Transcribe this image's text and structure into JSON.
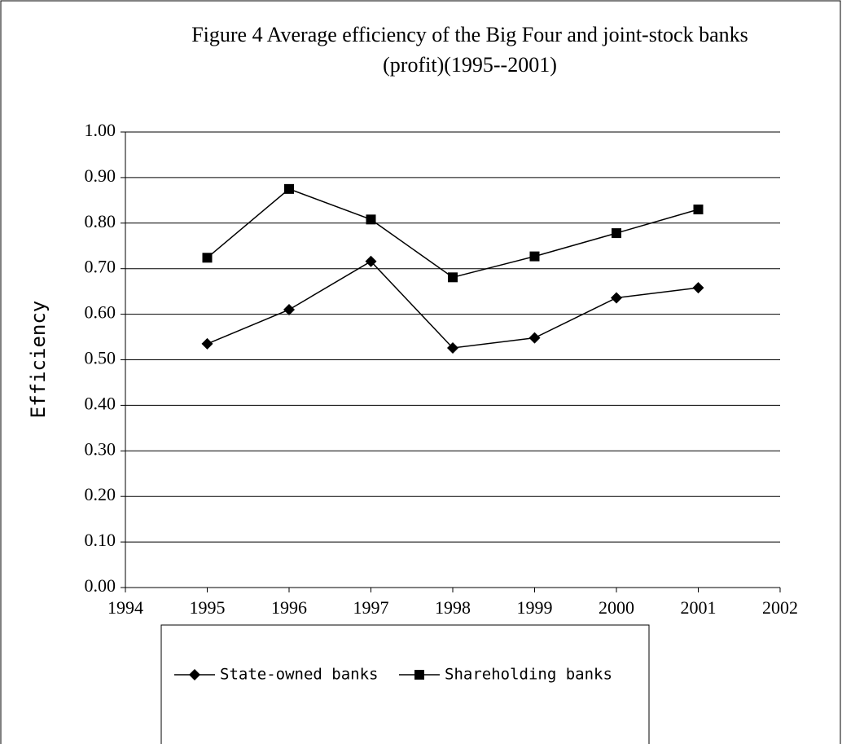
{
  "chart_data": {
    "type": "line",
    "title": [
      "Figure 4  Average efficiency of the Big Four and joint-stock banks",
      "(profit)(1995--2001)"
    ],
    "y_label": "Efficiency",
    "x": [
      1995,
      1996,
      1997,
      1998,
      1999,
      2000,
      2001
    ],
    "series": [
      {
        "name": "State-owned banks",
        "color": "#000000",
        "marker": "diamond",
        "values": [
          0.535,
          0.61,
          0.716,
          0.526,
          0.548,
          0.636,
          0.658
        ]
      },
      {
        "name": "Shareholding banks",
        "color": "#000000",
        "marker": "square",
        "values": [
          0.724,
          0.875,
          0.808,
          0.681,
          0.727,
          0.778,
          0.83
        ]
      }
    ],
    "xlim": [
      1994,
      2002
    ],
    "xticks": [
      1994,
      1995,
      1996,
      1997,
      1998,
      1999,
      2000,
      2001,
      2002
    ],
    "ylim": [
      0,
      1
    ],
    "yticks": [
      {
        "value": 0,
        "label": "0.00"
      },
      {
        "value": 0.1,
        "label": "0.10"
      },
      {
        "value": 0.2,
        "label": "0.20"
      },
      {
        "value": 0.3,
        "label": "0.30"
      },
      {
        "value": 0.4,
        "label": "0.40"
      },
      {
        "value": 0.5,
        "label": "0.50"
      },
      {
        "value": 0.6,
        "label": "0.60"
      },
      {
        "value": 0.7,
        "label": "0.70"
      },
      {
        "value": 0.8,
        "label": "0.80"
      },
      {
        "value": 0.9,
        "label": "0.90"
      },
      {
        "value": 1,
        "label": "1.00"
      }
    ],
    "grid": true,
    "legend": "bottom"
  }
}
